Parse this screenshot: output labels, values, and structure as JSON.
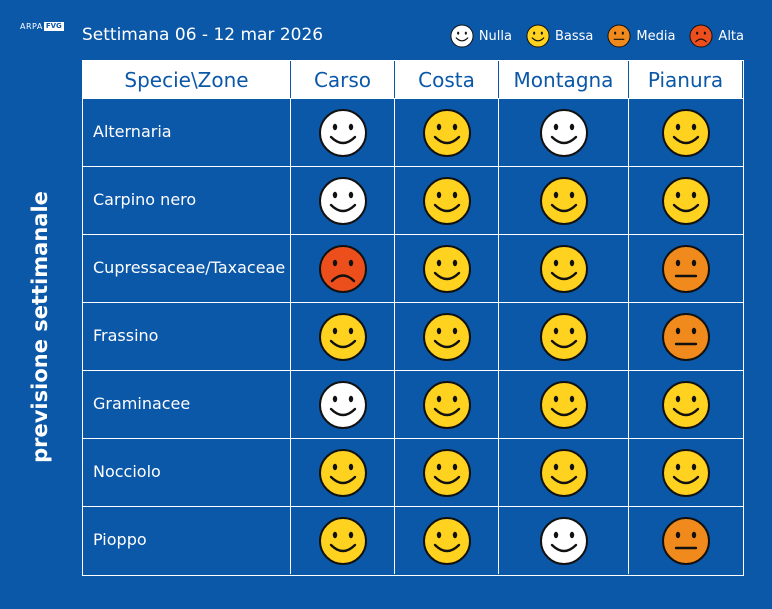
{
  "logo": {
    "arpa": "ARPA",
    "fvg": "FVG"
  },
  "week_label": "Settimana 06 - 12 mar 2026",
  "side_title": "previsione settimanale",
  "legend": [
    {
      "level": "nulla",
      "label": "Nulla"
    },
    {
      "level": "bassa",
      "label": "Bassa"
    },
    {
      "level": "media",
      "label": "Media"
    },
    {
      "level": "alta",
      "label": "Alta"
    }
  ],
  "levels": {
    "nulla": {
      "color": "#ffffff",
      "mood": "smile"
    },
    "bassa": {
      "color": "#ffd21f",
      "mood": "smile"
    },
    "media": {
      "color": "#f08a1c",
      "mood": "neutral"
    },
    "alta": {
      "color": "#ec4f1c",
      "mood": "sad"
    }
  },
  "columns": [
    "Specie\\Zone",
    "Carso",
    "Costa",
    "Montagna",
    "Pianura"
  ],
  "rows": [
    {
      "species": "Alternaria",
      "values": [
        "nulla",
        "bassa",
        "nulla",
        "bassa"
      ]
    },
    {
      "species": "Carpino nero",
      "values": [
        "nulla",
        "bassa",
        "bassa",
        "bassa"
      ]
    },
    {
      "species": "Cupressaceae/Taxaceae",
      "values": [
        "alta",
        "bassa",
        "bassa",
        "media"
      ]
    },
    {
      "species": "Frassino",
      "values": [
        "bassa",
        "bassa",
        "bassa",
        "media"
      ]
    },
    {
      "species": "Graminacee",
      "values": [
        "nulla",
        "bassa",
        "bassa",
        "bassa"
      ]
    },
    {
      "species": "Nocciolo",
      "values": [
        "bassa",
        "bassa",
        "bassa",
        "bassa"
      ]
    },
    {
      "species": "Pioppo",
      "values": [
        "bassa",
        "bassa",
        "nulla",
        "media"
      ]
    }
  ]
}
